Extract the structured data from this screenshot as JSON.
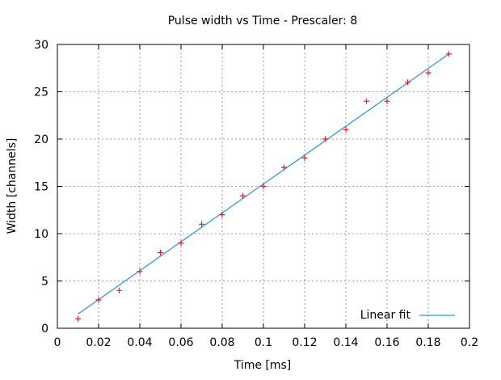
{
  "chart_data": {
    "type": "scatter",
    "title": "Pulse width vs Time - Prescaler: 8",
    "xlabel": "Time [ms]",
    "ylabel": "Width [channels]",
    "xlim": [
      0,
      0.2
    ],
    "ylim": [
      0,
      30
    ],
    "x_ticks": [
      "0",
      "0.02",
      "0.04",
      "0.06",
      "0.08",
      "0.1",
      "0.12",
      "0.14",
      "0.16",
      "0.18",
      "0.2"
    ],
    "y_ticks": [
      "0",
      "5",
      "10",
      "15",
      "20",
      "25",
      "30"
    ],
    "grid": true,
    "legend_position": "bottom-right",
    "series": [
      {
        "kind": "points",
        "marker": "plus",
        "color": "#e41a1c",
        "x": [
          0.01,
          0.02,
          0.03,
          0.04,
          0.05,
          0.06,
          0.07,
          0.08,
          0.09,
          0.1,
          0.11,
          0.12,
          0.13,
          0.14,
          0.15,
          0.16,
          0.17,
          0.18,
          0.19
        ],
        "y": [
          1,
          3,
          4,
          6,
          8,
          9,
          11,
          12,
          14,
          15,
          17,
          18,
          20,
          21,
          24,
          24,
          26,
          27,
          29
        ]
      },
      {
        "name": "Linear fit",
        "kind": "line",
        "color": "#3a9ad9",
        "x": [
          0.01,
          0.19
        ],
        "y": [
          1.5,
          29.0
        ]
      }
    ]
  }
}
